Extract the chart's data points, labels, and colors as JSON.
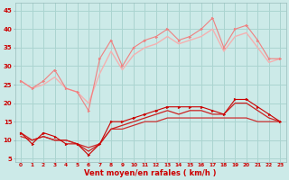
{
  "x": [
    0,
    1,
    2,
    3,
    4,
    5,
    6,
    7,
    8,
    9,
    10,
    11,
    12,
    13,
    14,
    15,
    16,
    17,
    18,
    19,
    20,
    21,
    22,
    23
  ],
  "line_light_dotted": [
    26,
    24,
    26,
    29,
    24,
    23,
    18,
    32,
    37,
    30,
    35,
    37,
    38,
    40,
    37,
    38,
    40,
    43,
    35,
    40,
    41,
    37,
    32,
    32
  ],
  "line_light_smooth": [
    26,
    24,
    25,
    27,
    24,
    23,
    20,
    28,
    34,
    29,
    33,
    35,
    36,
    38,
    36,
    37,
    38,
    40,
    34,
    38,
    39,
    35,
    31,
    32
  ],
  "line_dark_dotted": [
    12,
    9,
    12,
    11,
    9,
    9,
    6,
    9,
    15,
    15,
    16,
    17,
    18,
    19,
    19,
    19,
    19,
    18,
    17,
    21,
    21,
    19,
    17,
    15
  ],
  "line_dark_mid": [
    12,
    10,
    11,
    10,
    10,
    9,
    7,
    9,
    13,
    14,
    15,
    16,
    17,
    18,
    17,
    18,
    18,
    17,
    17,
    20,
    20,
    18,
    16,
    15
  ],
  "line_dark_smooth": [
    11,
    10,
    11,
    10,
    10,
    9,
    8,
    9,
    13,
    13,
    14,
    15,
    15,
    16,
    16,
    16,
    16,
    16,
    16,
    16,
    16,
    15,
    15,
    15
  ],
  "color_light_dot": "#f08080",
  "color_light_sm": "#f5b0b0",
  "color_dark_dot": "#cc0000",
  "color_dark_mid": "#cc2020",
  "color_dark_sm": "#cc3030",
  "bg_color": "#cceae8",
  "grid_color": "#aad4d0",
  "xlabel": "Vent moyen/en rafales ( km/h )",
  "yticks": [
    5,
    10,
    15,
    20,
    25,
    30,
    35,
    40,
    45
  ],
  "ylim": [
    4,
    47
  ],
  "xlim": [
    -0.5,
    23.5
  ]
}
